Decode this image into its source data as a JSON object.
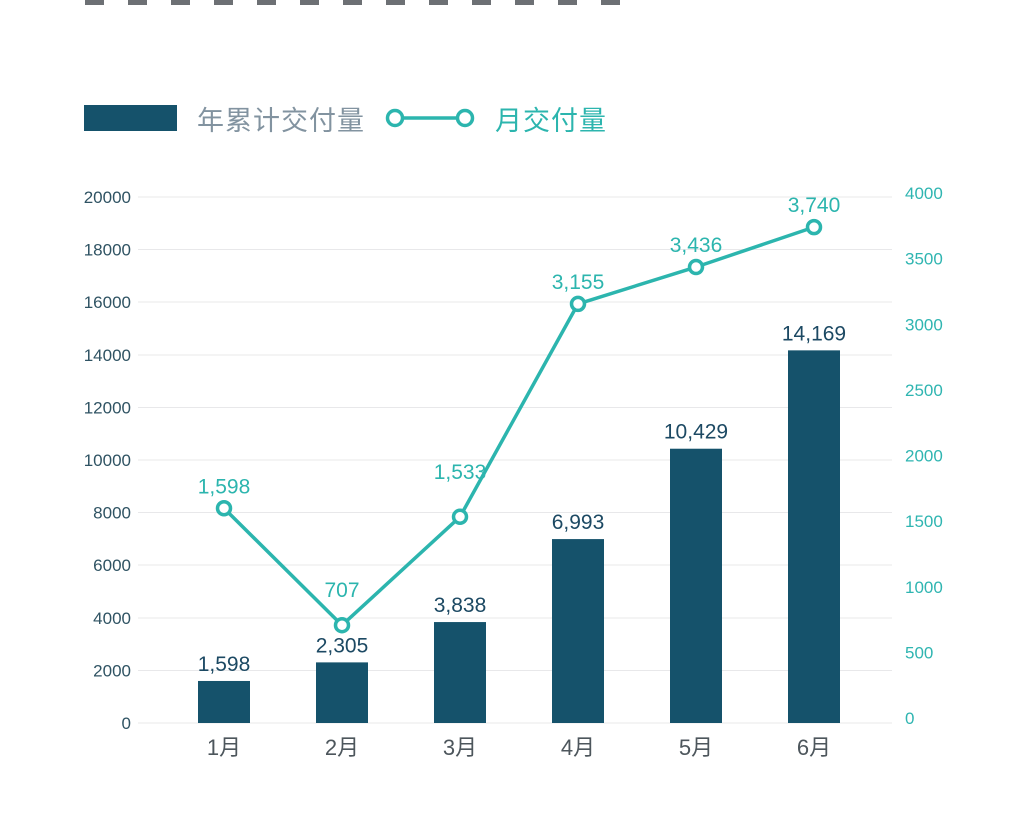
{
  "legend": {
    "bar_label": "年累计交付量",
    "line_label": "月交付量"
  },
  "chart_data": {
    "type": "bar",
    "subtype": "bar+line dual axis",
    "categories": [
      "1月",
      "2月",
      "3月",
      "4月",
      "5月",
      "6月"
    ],
    "series": [
      {
        "name": "年累计交付量",
        "type": "bar",
        "axis": "left",
        "values": [
          1598,
          2305,
          3838,
          6993,
          10429,
          14169
        ],
        "labels": [
          "1,598",
          "2,305",
          "3,838",
          "6,993",
          "10,429",
          "14,169"
        ]
      },
      {
        "name": "月交付量",
        "type": "line",
        "axis": "right",
        "values": [
          1598,
          707,
          1533,
          3155,
          3436,
          3740
        ],
        "labels": [
          "1,598",
          "707",
          "1,533",
          "3,155",
          "3,436",
          "3,740"
        ]
      }
    ],
    "left_axis": {
      "min": 0,
      "max": 20000,
      "step": 2000,
      "ticks": [
        "0",
        "2000",
        "4000",
        "6000",
        "8000",
        "10000",
        "12000",
        "14000",
        "16000",
        "18000",
        "20000"
      ]
    },
    "right_axis": {
      "min": 0,
      "max": 4000,
      "step": 500,
      "ticks": [
        "0",
        "500",
        "1000",
        "1500",
        "2000",
        "2500",
        "3000",
        "3500",
        "4000"
      ]
    },
    "grid": true,
    "legend_position": "top",
    "xlabel": "",
    "ylabel": ""
  },
  "colors": {
    "bar": "#15526B",
    "line": "#2CB5AE",
    "left_tick_text": "#2F5363",
    "right_tick_text": "#2FB5B1",
    "bar_value_text": "#1C4963",
    "line_value_text": "#2CB5AE",
    "month_text": "#4D565C",
    "legend_bar_text": "#8293A0",
    "legend_line_text": "#2CB5AE",
    "gridline": "#E8E8EA",
    "background": "#FFFFFF"
  }
}
